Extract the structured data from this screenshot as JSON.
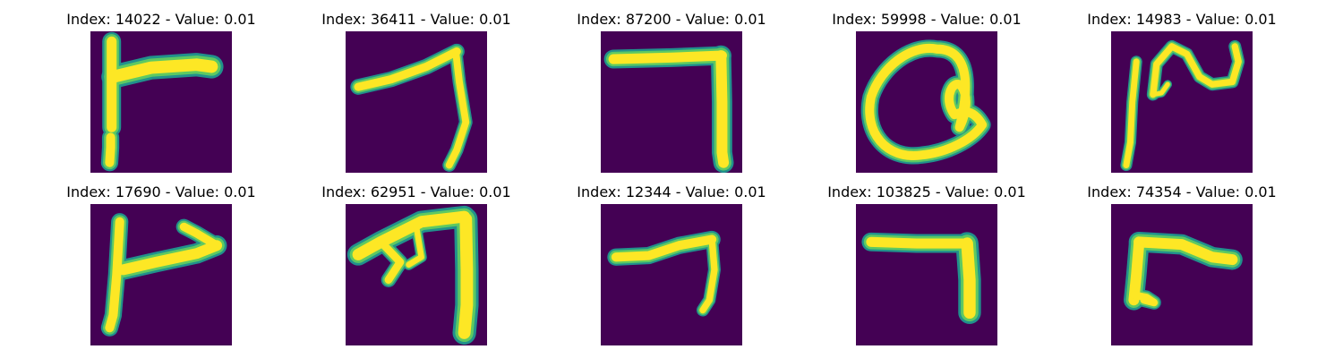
{
  "colormap": {
    "background": "#440154",
    "teal": "#21918c",
    "green": "#5ec962",
    "stroke": "#fde725"
  },
  "panels": [
    {
      "title": "Index: 14022 - Value: 0.01",
      "glyph": "t-shape"
    },
    {
      "title": "Index: 36411 - Value: 0.01",
      "glyph": "seven-curved"
    },
    {
      "title": "Index: 87200 - Value: 0.01",
      "glyph": "seven-square"
    },
    {
      "title": "Index: 59998 - Value: 0.01",
      "glyph": "loop"
    },
    {
      "title": "Index: 14983 - Value: 0.01",
      "glyph": "scribble"
    },
    {
      "title": "Index: 17690 - Value: 0.01",
      "glyph": "t-hook"
    },
    {
      "title": "Index: 62951 - Value: 0.01",
      "glyph": "arrow"
    },
    {
      "title": "Index: 12344 - Value: 0.01",
      "glyph": "seven-thin"
    },
    {
      "title": "Index: 103825 - Value: 0.01",
      "glyph": "seven-thick"
    },
    {
      "title": "Index: 74354 - Value: 0.01",
      "glyph": "t-short"
    }
  ]
}
